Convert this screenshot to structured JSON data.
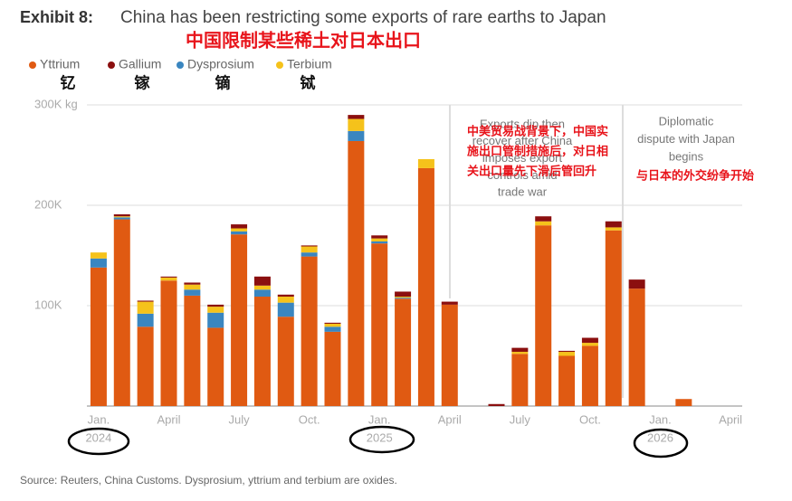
{
  "chart_data": {
    "type": "stacked-bar",
    "exhibit": "Exhibit 8:",
    "title": "China has been restricting some exports of rare earths to Japan",
    "title_translation": "中国限制某些稀土对日本出口",
    "categories": [
      "Jan.",
      null,
      null,
      "April",
      null,
      null,
      "July",
      null,
      null,
      "Oct.",
      null,
      null,
      "Jan.",
      null,
      null,
      "April",
      null,
      null,
      "July",
      null,
      null,
      "Oct.",
      null,
      null,
      "Jan.",
      null,
      null,
      "April"
    ],
    "year_labels": [
      "2024",
      null,
      null,
      null,
      null,
      null,
      null,
      null,
      null,
      null,
      null,
      null,
      "2025",
      null,
      null,
      null,
      null,
      null,
      null,
      null,
      null,
      null,
      null,
      null,
      "2026",
      null,
      null,
      null
    ],
    "series": [
      {
        "name": "Yttrium",
        "translation": "钇",
        "color": "#e05a12",
        "values": [
          138000,
          186000,
          79000,
          125000,
          110000,
          78000,
          171000,
          109000,
          89000,
          149000,
          74000,
          264000,
          162000,
          107000,
          237000,
          101000,
          0,
          0,
          52000,
          180000,
          50000,
          60000,
          175000,
          117000,
          0,
          7000,
          null,
          null
        ]
      },
      {
        "name": "Gallium",
        "translation": "镓",
        "color": "#8b0f0f",
        "values": [
          0,
          2000,
          1000,
          1000,
          2000,
          2000,
          4000,
          9000,
          2000,
          1000,
          1000,
          4000,
          3000,
          5000,
          0,
          3000,
          0,
          2000,
          4000,
          5000,
          1000,
          5000,
          6000,
          9000,
          0,
          0,
          null,
          null
        ]
      },
      {
        "name": "Dysprosium",
        "translation": "镝",
        "color": "#3a86c0",
        "values": [
          9000,
          2000,
          13000,
          0,
          6000,
          15000,
          3000,
          7000,
          14000,
          4000,
          5000,
          10000,
          2000,
          1000,
          0,
          0,
          0,
          0,
          0,
          0,
          0,
          0,
          0,
          0,
          0,
          0,
          null,
          null
        ]
      },
      {
        "name": "Terbium",
        "translation": "铽",
        "color": "#f5c21b",
        "values": [
          6000,
          1000,
          12000,
          3000,
          5000,
          6000,
          3000,
          4000,
          6000,
          6000,
          3000,
          12000,
          3000,
          1000,
          9000,
          0,
          0,
          0,
          2000,
          4000,
          4000,
          3000,
          3000,
          0,
          0,
          0,
          null,
          null
        ]
      }
    ],
    "stack_order": [
      0,
      2,
      3,
      1
    ],
    "ylim": [
      0,
      300000
    ],
    "yticks": [
      {
        "value": 100000,
        "label": "100K"
      },
      {
        "value": 200000,
        "label": "200K"
      },
      {
        "value": 300000,
        "label": "300K kg"
      }
    ],
    "grid": true,
    "annotations": [
      {
        "lines": [
          "Exports dip then",
          "recover after China",
          "imposes export",
          "controls amid",
          "trade war"
        ],
        "translation": [
          "中美贸易战背景下，中国实",
          "施出口管制措施后，对日相",
          "关出口量先下滑后管回升"
        ]
      },
      {
        "lines": [
          "Diplomatic",
          "dispute with Japan",
          "begins"
        ],
        "translation": [
          "与日本的外交纷争开始"
        ]
      }
    ],
    "source": "Source: Reuters, China Customs. Dysprosium, yttrium and terbium are oxides."
  }
}
